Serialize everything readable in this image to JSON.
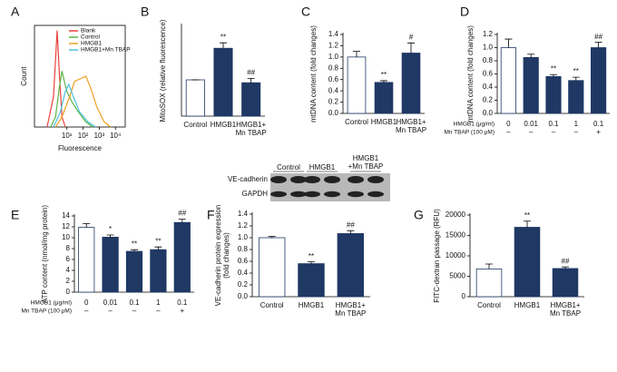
{
  "chart_data": [
    {
      "type": "flow",
      "panel_label": "A",
      "ylabel": "Count",
      "xlabel": "Fluorescence",
      "log_x": true,
      "xlim": [
        0.1,
        40000
      ],
      "ylim": [
        0,
        100
      ],
      "xticks": [
        {
          "value": 10,
          "label": "10¹"
        },
        {
          "value": 100,
          "label": "10²"
        },
        {
          "value": 1000,
          "label": "10³"
        },
        {
          "value": 10000,
          "label": "10⁴"
        }
      ],
      "series": [
        {
          "name": "Blank",
          "color": "#e8413c",
          "x": [
            0.6,
            1.5,
            2.5,
            3.5,
            5,
            8
          ],
          "values": [
            0,
            30,
            95,
            50,
            10,
            0
          ]
        },
        {
          "name": "Control",
          "color": "#5bb548",
          "x": [
            1,
            2,
            3.5,
            5,
            7,
            10,
            20,
            50,
            150,
            400
          ],
          "values": [
            0,
            10,
            40,
            55,
            45,
            35,
            25,
            15,
            5,
            0
          ]
        },
        {
          "name": "HMGB1",
          "color": "#f0a020",
          "x": [
            2,
            5,
            15,
            30,
            80,
            150,
            300,
            700,
            2000,
            5000
          ],
          "values": [
            0,
            10,
            30,
            45,
            48,
            50,
            38,
            20,
            5,
            0
          ]
        },
        {
          "name": "HMGB1+Mn TBAP",
          "color": "#4cc3e0",
          "x": [
            1.5,
            4,
            8,
            13,
            25,
            60,
            200,
            600
          ],
          "values": [
            0,
            15,
            35,
            42,
            30,
            15,
            5,
            0
          ]
        }
      ]
    },
    {
      "type": "bar",
      "panel_label": "B",
      "ylabel": "MitoSOX (relative fluorescence)",
      "categories": [
        "Control",
        "HMGB1",
        "HMGB1+\nMn TBAP"
      ],
      "values": [
        1.0,
        1.87,
        0.92
      ],
      "errors": [
        0,
        0.15,
        0.12
      ],
      "annotations": [
        null,
        "**",
        "##"
      ],
      "colors": [
        "#ffffff",
        "#1f3864",
        "#1f3864"
      ],
      "ylim": [
        0,
        2.5
      ]
    },
    {
      "type": "bar",
      "panel_label": "C",
      "ylabel": "mtDNA content (fold changes)",
      "categories": [
        "Control",
        "HMGB1",
        "HMGB1+\nMn TBAP"
      ],
      "values": [
        1.0,
        0.55,
        1.07
      ],
      "errors": [
        0.1,
        0.03,
        0.18
      ],
      "annotations": [
        null,
        "**",
        "#"
      ],
      "colors": [
        "#ffffff",
        "#1f3864",
        "#1f3864"
      ],
      "ylim": [
        0,
        1.4
      ],
      "yticks": [
        {
          "value": 0,
          "label": "0.0"
        },
        0.2,
        0.4,
        0.6,
        0.8,
        {
          "value": 1,
          "label": "1.0"
        },
        1.2,
        1.4
      ]
    },
    {
      "type": "bar",
      "panel_label": "D",
      "ylabel": "mtDNA content (fold changes)",
      "categories": [
        null,
        null,
        null,
        null,
        null
      ],
      "values": [
        1.0,
        0.85,
        0.56,
        0.5,
        1.0
      ],
      "errors": [
        0.13,
        0.05,
        0.03,
        0.05,
        0.08
      ],
      "annotations": [
        null,
        null,
        "**",
        "**",
        "##"
      ],
      "colors": [
        "#ffffff",
        "#1f3864",
        "#1f3864",
        "#1f3864",
        "#1f3864"
      ],
      "ylim": [
        0,
        1.2
      ],
      "yticks": [
        {
          "value": 0,
          "label": "0.0"
        },
        0.2,
        0.4,
        0.6,
        0.8,
        {
          "value": 1,
          "label": "1.0"
        },
        1.2
      ],
      "table": [
        {
          "label": "HMGB1 (μg/ml)",
          "cells": [
            "0",
            "0.01",
            "0.1",
            "1",
            "0.1"
          ]
        },
        {
          "label": "Mn TBAP (100 μM)",
          "cells": [
            "–",
            "–",
            "–",
            "–",
            "+"
          ]
        }
      ]
    },
    {
      "type": "bar",
      "panel_label": "E",
      "ylabel": "ATP content (nmol/mg protein)",
      "categories": [
        null,
        null,
        null,
        null,
        null
      ],
      "values": [
        11.9,
        10.1,
        7.5,
        7.8,
        12.8
      ],
      "errors": [
        0.7,
        0.4,
        0.3,
        0.5,
        0.6
      ],
      "annotations": [
        null,
        "*",
        "**",
        "**",
        "##"
      ],
      "colors": [
        "#ffffff",
        "#1f3864",
        "#1f3864",
        "#1f3864",
        "#1f3864"
      ],
      "ylim": [
        0,
        14
      ],
      "yticks": [
        0,
        2,
        4,
        6,
        8,
        10,
        12,
        14
      ],
      "table": [
        {
          "label": "HMGB1 (μg/ml)",
          "cells": [
            "0",
            "0.01",
            "0.1",
            "1",
            "0.1"
          ]
        },
        {
          "label": "Mn TBAP (100 μM)",
          "cells": [
            "–",
            "–",
            "–",
            "–",
            "+"
          ]
        }
      ]
    },
    {
      "type": "bar",
      "panel_label": "F",
      "ylabel": "VE-cadherin protein expression\n(fold changes)",
      "categories": [
        "Control",
        "HMGB1",
        "HMGB1+\nMn TBAP"
      ],
      "values": [
        1.0,
        0.56,
        1.07
      ],
      "errors": [
        0.02,
        0.03,
        0.05
      ],
      "annotations": [
        null,
        "**",
        "##"
      ],
      "colors": [
        "#ffffff",
        "#1f3864",
        "#1f3864"
      ],
      "ylim": [
        0,
        1.4
      ],
      "yticks": [
        {
          "value": 0,
          "label": "0.0"
        },
        0.2,
        0.4,
        0.6,
        0.8,
        {
          "value": 1,
          "label": "1.0"
        },
        1.2,
        1.4
      ],
      "blot": {
        "rows": [
          "VE-cadherin",
          "GAPDH"
        ],
        "columns": [
          "Control",
          "HMGB1",
          "HMGB1\n+Mn TBAP"
        ]
      }
    },
    {
      "type": "bar",
      "panel_label": "G",
      "ylabel": "FITC-dextran passage (RFU)",
      "categories": [
        "Control",
        "HMGB1",
        "HMGB1+\nMn TBAP"
      ],
      "values": [
        6800,
        17000,
        6900
      ],
      "errors": [
        1200,
        1500,
        400
      ],
      "annotations": [
        null,
        "**",
        "##"
      ],
      "colors": [
        "#ffffff",
        "#1f3864",
        "#1f3864"
      ],
      "ylim": [
        0,
        20000
      ],
      "yticks": [
        0,
        5000,
        10000,
        15000,
        20000
      ]
    }
  ]
}
